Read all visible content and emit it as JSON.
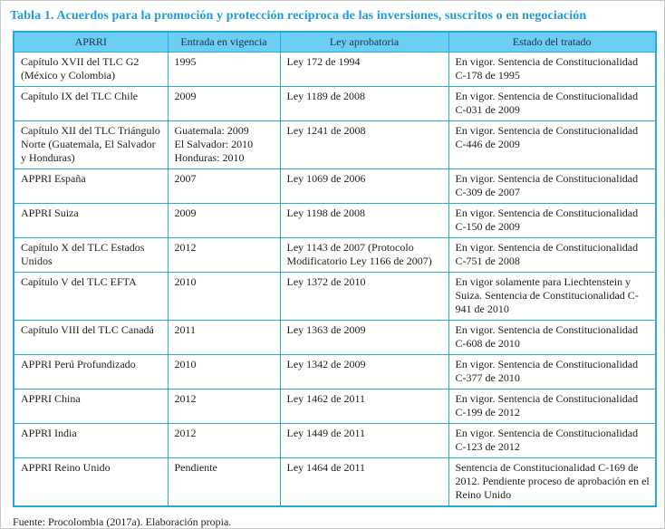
{
  "page": {
    "title": "Tabla 1. Acuerdos para la promoción y protección recíproca de las inversiones, suscritos o en negociación",
    "source_note": "Fuente: Procolombia (2017a). Elaboración propia."
  },
  "colors": {
    "title_blue": "#1E9CD8",
    "header_bg": "#6BCEF2",
    "header_text": "#1B3150",
    "grid_border": "#2AA9E1",
    "body_text": "#1E1E1C"
  },
  "table": {
    "columns": [
      "APRRI",
      "Entrada en vigencia",
      "Ley aprobatoria",
      "Estado del tratado"
    ],
    "rows": [
      {
        "apri": "Capítulo XVII del TLC G2 (México y Colombia)",
        "vigencia": "1995",
        "ley": "Ley 172 de 1994",
        "estado": "En vigor. Sentencia de Constitucionalidad C-178 de 1995"
      },
      {
        "apri": "Capítulo IX del TLC Chile",
        "vigencia": "2009",
        "ley": "Ley 1189 de 2008",
        "estado": "En vigor. Sentencia de Constitucionalidad C-031 de 2009"
      },
      {
        "apri": "Capítulo XII del TLC Triángulo Norte (Guatemala, El Salvador y Honduras)",
        "vigencia": "Guatemala: 2009\nEl Salvador: 2010\nHonduras: 2010",
        "ley": "Ley 1241 de 2008",
        "estado": "En vigor. Sentencia de Constitucionalidad C-446 de 2009"
      },
      {
        "apri": "APPRI España",
        "vigencia": "2007",
        "ley": "Ley 1069 de 2006",
        "estado": "En vigor. Sentencia de Constitucionalidad C-309 de 2007"
      },
      {
        "apri": "APPRI Suiza",
        "vigencia": "2009",
        "ley": "Ley 1198 de 2008",
        "estado": "En vigor. Sentencia de Constitucionalidad C-150 de 2009"
      },
      {
        "apri": "Capítulo X del TLC Estados Unidos",
        "vigencia": "2012",
        "ley": "Ley 1143 de 2007 (Protocolo Modificatorio Ley 1166 de 2007)",
        "estado": "En vigor. Sentencia de Constitucionalidad C-751 de 2008"
      },
      {
        "apri": "Capítulo V del TLC EFTA",
        "vigencia": "2010",
        "ley": "Ley 1372 de 2010",
        "estado": "En vigor solamente para Liechtenstein y Suiza. Sentencia de Constitucionalidad C-941 de 2010"
      },
      {
        "apri": "Capítulo VIII del TLC Canadá",
        "vigencia": "2011",
        "ley": "Ley 1363 de 2009",
        "estado": "En vigor. Sentencia de Constitucionalidad C-608 de 2010"
      },
      {
        "apri": "APPRI Perú Profundizado",
        "vigencia": "2010",
        "ley": "Ley 1342 de 2009",
        "estado": "En vigor. Sentencia de Constitucionalidad C-377 de 2010"
      },
      {
        "apri": "APPRI China",
        "vigencia": "2012",
        "ley": "Ley 1462 de 2011",
        "estado": "En vigor. Sentencia de Constitucionalidad C-199 de 2012"
      },
      {
        "apri": "APPRI India",
        "vigencia": "2012",
        "ley": "Ley 1449 de 2011",
        "estado": "En vigor. Sentencia de Constitucionalidad C-123 de 2012"
      },
      {
        "apri": "APPRI Reino Unido",
        "vigencia": "Pendiente",
        "ley": "Ley 1464 de 2011",
        "estado": "Sentencia de Constitucionalidad C-169 de 2012. Pendiente proceso de aprobación en el Reino Unido"
      }
    ]
  }
}
